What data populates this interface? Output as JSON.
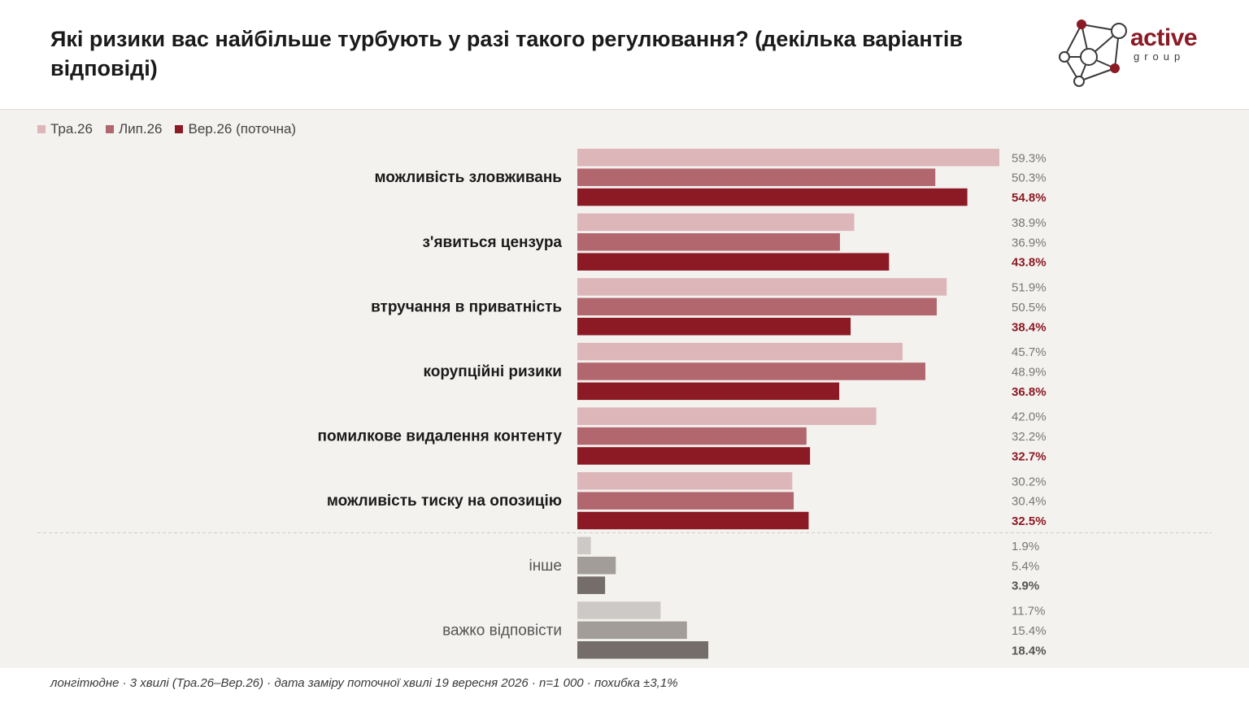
{
  "title": "Які ризики вас найбільше турбують у разі такого регулювання? (декілька варіантів відповіді)",
  "logo": {
    "word": "active",
    "sub": "group"
  },
  "legend": [
    {
      "label": "Тра.26",
      "color": "#dcb6b9"
    },
    {
      "label": "Лип.26",
      "color": "#b2666d"
    },
    {
      "label": "Вер.26 (поточна)",
      "color": "#8b1a24"
    }
  ],
  "footnote": "лонгітюдне · 3 хвилі (Тра.26–Вер.26) · дата заміру поточної хвилі 19 вересня 2026 · n=1 000 · похибка ±3,1%",
  "chart_data": {
    "type": "bar",
    "orientation": "horizontal",
    "title": "Які ризики вас найбільше турбують у разі такого регулювання? (декілька варіантів відповіді)",
    "unit": "%",
    "xlim": [
      0,
      60
    ],
    "grid": false,
    "legend_position": "top-left",
    "categories": [
      "можливість зловживань",
      "з'явиться цензура",
      "втручання в приватність",
      "корупційні ризики",
      "помилкове видалення контенту",
      "можливість тиску на опозицію",
      "інше",
      "важко відповісти"
    ],
    "series": [
      {
        "name": "Тра.26",
        "color": "#dcb6b9",
        "muted_color": "#cdc9c6",
        "values": [
          59.3,
          38.9,
          51.9,
          45.7,
          42.0,
          30.2,
          1.9,
          11.7
        ]
      },
      {
        "name": "Лип.26",
        "color": "#b2666d",
        "muted_color": "#a29d99",
        "values": [
          50.3,
          36.9,
          50.5,
          48.9,
          32.2,
          30.4,
          5.4,
          15.4
        ]
      },
      {
        "name": "Вер.26 (поточна)",
        "color": "#8b1a24",
        "muted_color": "#746d69",
        "values": [
          54.8,
          43.8,
          38.4,
          36.8,
          32.7,
          32.5,
          3.9,
          18.4
        ]
      }
    ],
    "value_labels": [
      [
        "59.3%",
        "50.3%",
        "54.8%"
      ],
      [
        "38.9%",
        "36.9%",
        "43.8%"
      ],
      [
        "51.9%",
        "50.5%",
        "38.4%"
      ],
      [
        "45.7%",
        "48.9%",
        "36.8%"
      ],
      [
        "42.0%",
        "32.2%",
        "32.7%"
      ],
      [
        "30.2%",
        "30.4%",
        "32.5%"
      ],
      [
        "1.9%",
        "5.4%",
        "3.9%"
      ],
      [
        "11.7%",
        "15.4%",
        "18.4%"
      ]
    ],
    "muted_categories": [
      "інше",
      "важко відповісти"
    ],
    "separator_before": "інше"
  }
}
